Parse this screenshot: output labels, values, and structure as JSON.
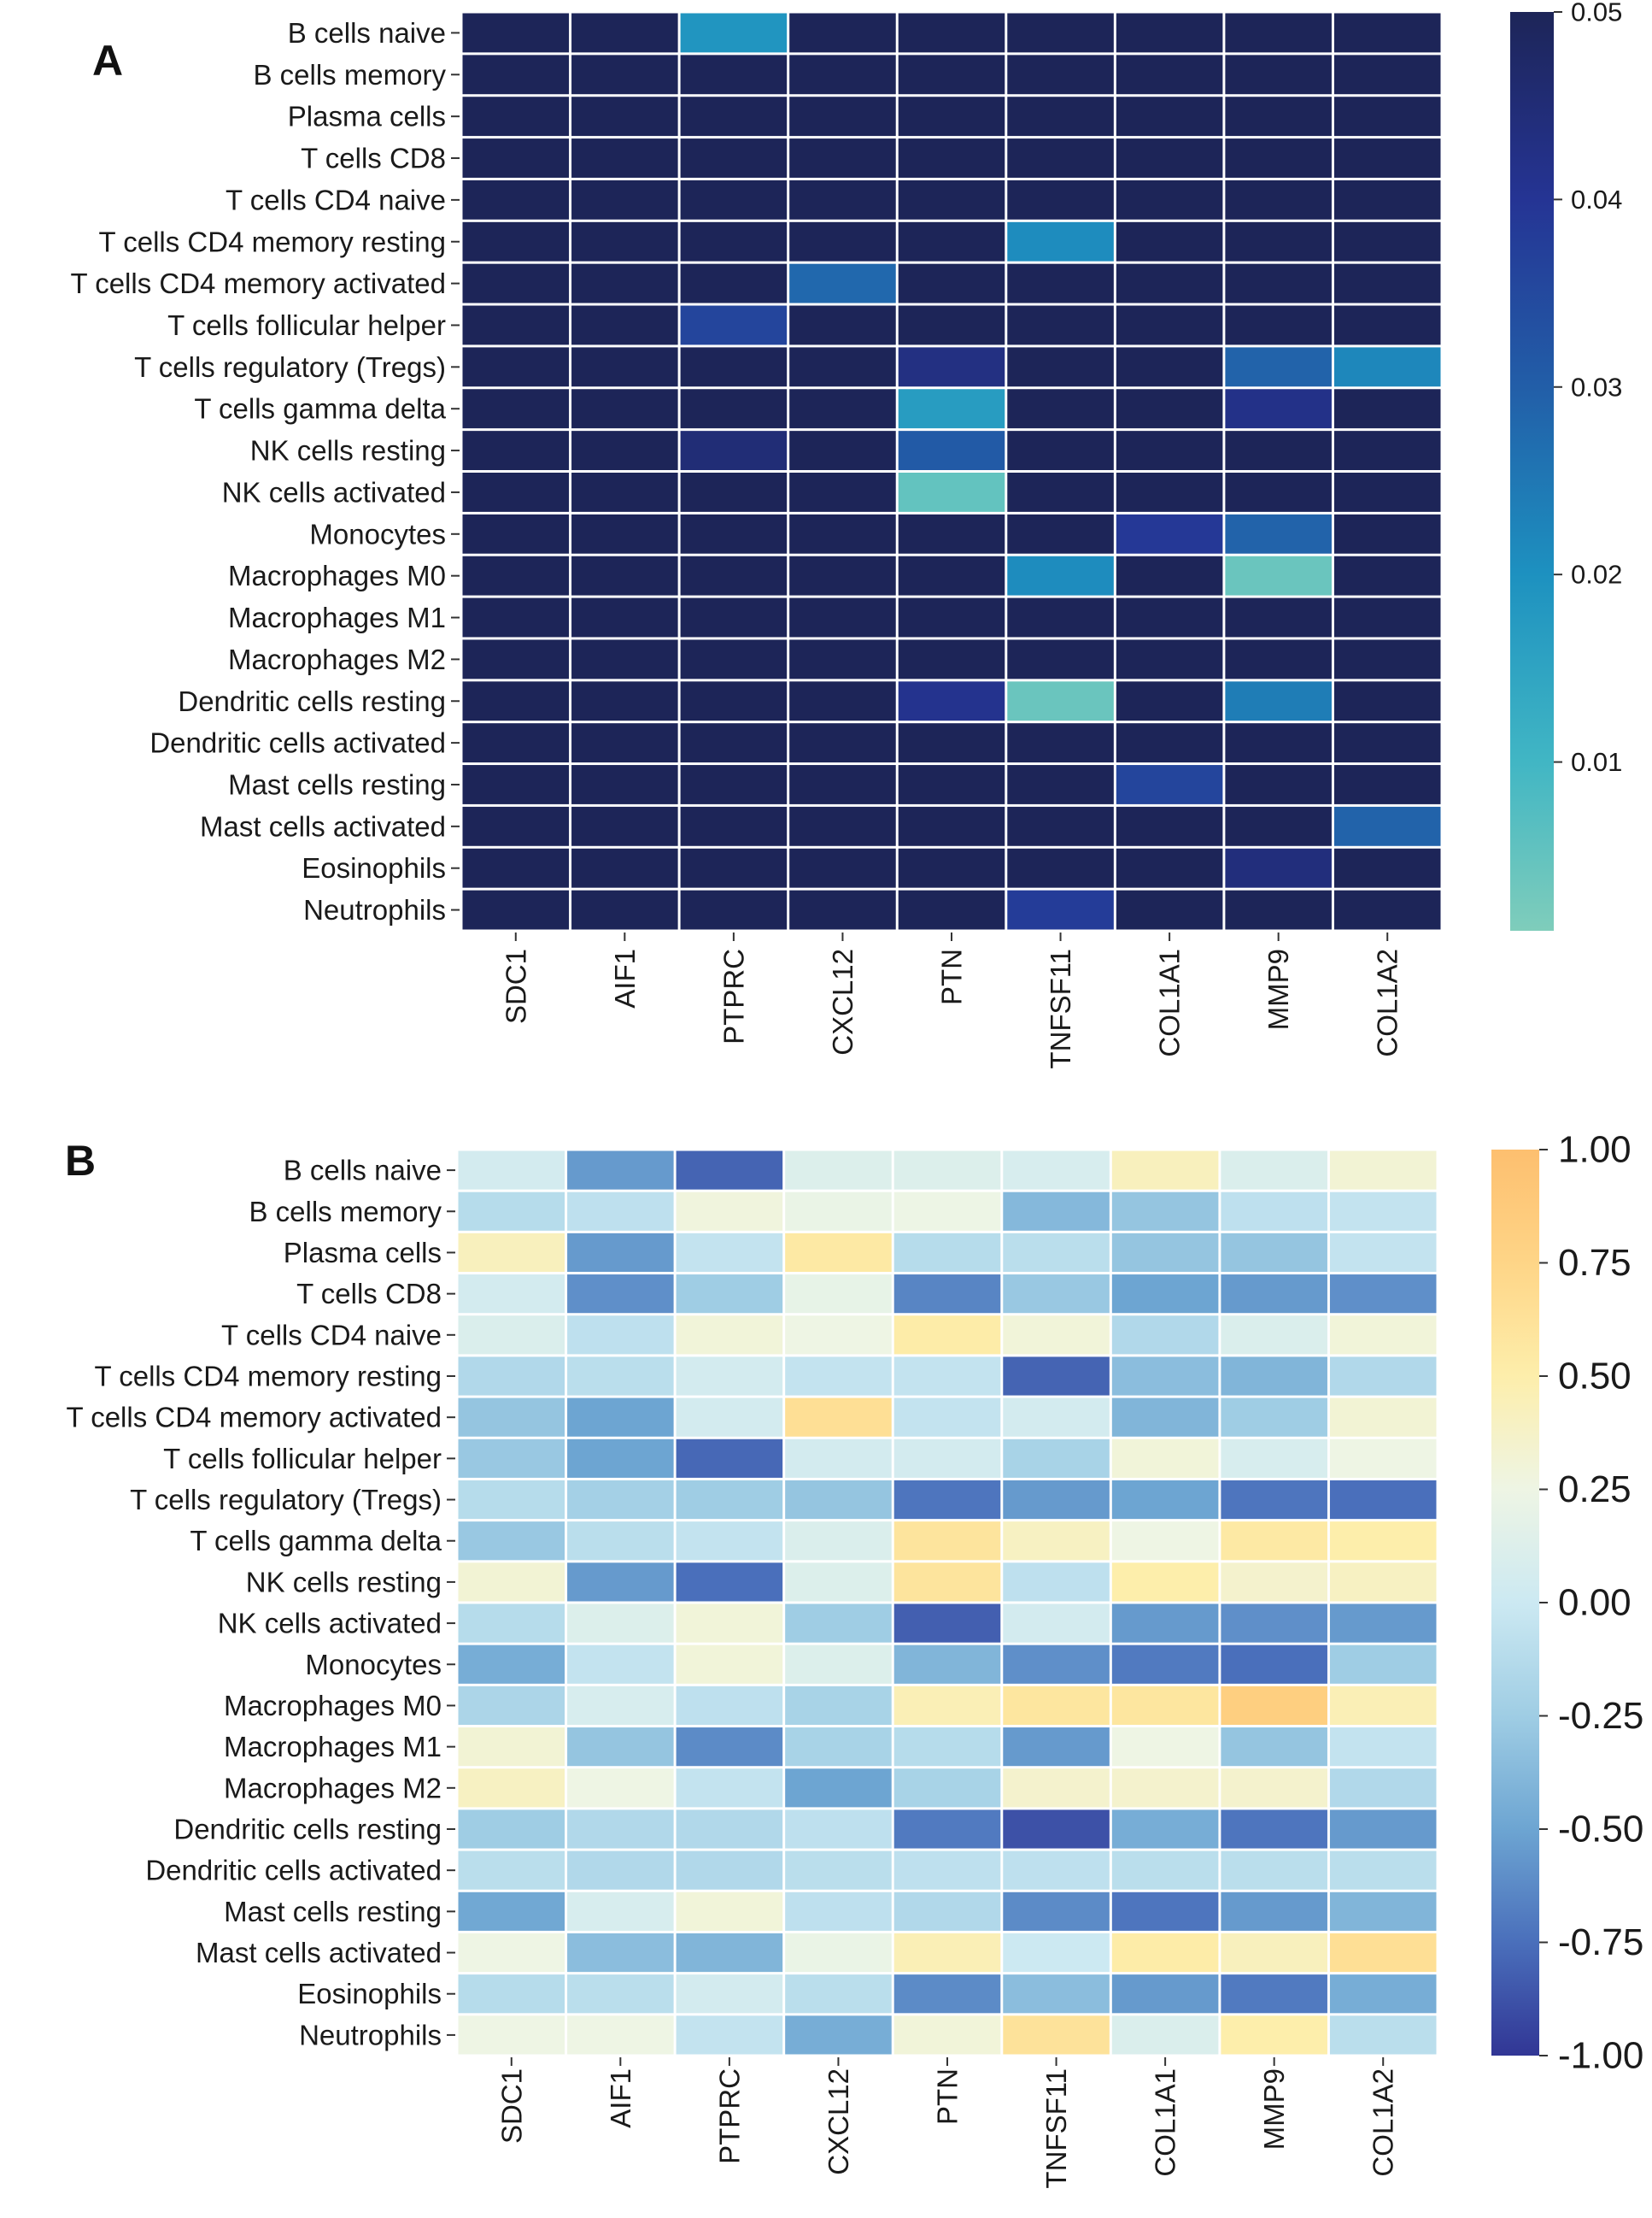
{
  "chart_data": [
    {
      "type": "heatmap",
      "panel_label": "A",
      "rows": [
        "B cells naive",
        "B cells memory",
        "Plasma cells",
        "T cells CD8",
        "T cells CD4 naive",
        "T cells CD4 memory resting",
        "T cells CD4 memory activated",
        "T cells follicular helper",
        "T cells regulatory (Tregs)",
        "T cells gamma delta",
        "NK cells resting",
        "NK cells activated",
        "Monocytes",
        "Macrophages M0",
        "Macrophages M1",
        "Macrophages M2",
        "Dendritic cells resting",
        "Dendritic cells activated",
        "Mast cells resting",
        "Mast cells activated",
        "Eosinophils",
        "Neutrophils"
      ],
      "columns": [
        "SDC1",
        "AIF1",
        "PTPRC",
        "CXCL12",
        "PTN",
        "TNFSF11",
        "COL1A1",
        "MMP9",
        "COL1A2"
      ],
      "values": [
        [
          0.05,
          0.05,
          0.019,
          0.05,
          0.05,
          0.05,
          0.05,
          0.05,
          0.05
        ],
        [
          0.05,
          0.05,
          0.05,
          0.05,
          0.05,
          0.05,
          0.05,
          0.05,
          0.05
        ],
        [
          0.05,
          0.05,
          0.05,
          0.05,
          0.05,
          0.05,
          0.05,
          0.05,
          0.05
        ],
        [
          0.05,
          0.05,
          0.05,
          0.05,
          0.05,
          0.05,
          0.05,
          0.05,
          0.05
        ],
        [
          0.05,
          0.05,
          0.05,
          0.05,
          0.05,
          0.05,
          0.05,
          0.05,
          0.05
        ],
        [
          0.05,
          0.05,
          0.05,
          0.05,
          0.05,
          0.021,
          0.05,
          0.05,
          0.05
        ],
        [
          0.05,
          0.05,
          0.05,
          0.028,
          0.05,
          0.05,
          0.05,
          0.05,
          0.05
        ],
        [
          0.05,
          0.05,
          0.036,
          0.05,
          0.05,
          0.05,
          0.05,
          0.05,
          0.05
        ],
        [
          0.05,
          0.05,
          0.05,
          0.05,
          0.043,
          0.05,
          0.05,
          0.029,
          0.022
        ],
        [
          0.05,
          0.05,
          0.05,
          0.05,
          0.017,
          0.05,
          0.05,
          0.042,
          0.05
        ],
        [
          0.05,
          0.05,
          0.045,
          0.05,
          0.031,
          0.05,
          0.05,
          0.05,
          0.05
        ],
        [
          0.05,
          0.05,
          0.05,
          0.05,
          0.005,
          0.05,
          0.05,
          0.05,
          0.05
        ],
        [
          0.05,
          0.05,
          0.05,
          0.05,
          0.05,
          0.05,
          0.039,
          0.029,
          0.05
        ],
        [
          0.05,
          0.05,
          0.05,
          0.05,
          0.05,
          0.021,
          0.05,
          0.004,
          0.05
        ],
        [
          0.05,
          0.05,
          0.05,
          0.05,
          0.05,
          0.05,
          0.05,
          0.05,
          0.05
        ],
        [
          0.05,
          0.05,
          0.05,
          0.05,
          0.05,
          0.05,
          0.05,
          0.05,
          0.05
        ],
        [
          0.05,
          0.05,
          0.05,
          0.05,
          0.041,
          0.004,
          0.05,
          0.024,
          0.05
        ],
        [
          0.05,
          0.05,
          0.05,
          0.05,
          0.05,
          0.05,
          0.05,
          0.05,
          0.05
        ],
        [
          0.05,
          0.05,
          0.05,
          0.05,
          0.05,
          0.05,
          0.036,
          0.05,
          0.05
        ],
        [
          0.05,
          0.05,
          0.05,
          0.05,
          0.05,
          0.05,
          0.05,
          0.05,
          0.029
        ],
        [
          0.05,
          0.05,
          0.05,
          0.05,
          0.05,
          0.05,
          0.05,
          0.044,
          0.05
        ],
        [
          0.05,
          0.05,
          0.05,
          0.05,
          0.05,
          0.038,
          0.05,
          0.05,
          0.05
        ]
      ],
      "colorbar": {
        "range": [
          0.001,
          0.05
        ],
        "ticks": [
          "0.01",
          "0.02",
          "0.03",
          "0.04",
          "0.05"
        ],
        "tick_values": [
          0.01,
          0.02,
          0.03,
          0.04,
          0.05
        ],
        "colormap": "YlGnBu-section",
        "stops": [
          {
            "v": 0.001,
            "c": "#7fcdbb"
          },
          {
            "v": 0.01,
            "c": "#41b6c4"
          },
          {
            "v": 0.02,
            "c": "#1d91c0"
          },
          {
            "v": 0.03,
            "c": "#225ea8"
          },
          {
            "v": 0.04,
            "c": "#253494"
          },
          {
            "v": 0.05,
            "c": "#1d2558"
          }
        ]
      }
    },
    {
      "type": "heatmap",
      "panel_label": "B",
      "rows": [
        "B cells naive",
        "B cells memory",
        "Plasma cells",
        "T cells CD8",
        "T cells CD4 naive",
        "T cells CD4 memory resting",
        "T cells CD4 memory activated",
        "T cells follicular helper",
        "T cells regulatory (Tregs)",
        "T cells gamma delta",
        "NK cells resting",
        "NK cells activated",
        "Monocytes",
        "Macrophages M0",
        "Macrophages M1",
        "Macrophages M2",
        "Dendritic cells resting",
        "Dendritic cells activated",
        "Mast cells resting",
        "Mast cells activated",
        "Eosinophils",
        "Neutrophils"
      ],
      "columns": [
        "SDC1",
        "AIF1",
        "PTPRC",
        "CXCL12",
        "PTN",
        "TNFSF11",
        "COL1A1",
        "MMP9",
        "COL1A2"
      ],
      "values": [
        [
          0.05,
          -0.55,
          -0.8,
          0.12,
          0.12,
          0.08,
          0.42,
          0.1,
          0.32
        ],
        [
          -0.12,
          -0.08,
          0.28,
          0.22,
          0.24,
          -0.38,
          -0.3,
          -0.08,
          -0.05
        ],
        [
          0.42,
          -0.55,
          -0.05,
          0.55,
          -0.12,
          -0.1,
          -0.3,
          -0.3,
          -0.05
        ],
        [
          0.05,
          -0.6,
          -0.25,
          0.2,
          -0.65,
          -0.28,
          -0.5,
          -0.55,
          -0.6
        ],
        [
          0.1,
          -0.08,
          0.3,
          0.25,
          0.52,
          0.3,
          -0.15,
          0.1,
          0.3
        ],
        [
          -0.15,
          -0.1,
          0.05,
          -0.05,
          -0.05,
          -0.8,
          -0.35,
          -0.4,
          -0.15
        ],
        [
          -0.3,
          -0.5,
          0.05,
          0.65,
          -0.05,
          0.05,
          -0.4,
          -0.25,
          0.32
        ],
        [
          -0.28,
          -0.5,
          -0.78,
          0.05,
          0.05,
          -0.2,
          0.3,
          0.08,
          0.25
        ],
        [
          -0.12,
          -0.22,
          -0.25,
          -0.3,
          -0.72,
          -0.55,
          -0.5,
          -0.72,
          -0.75
        ],
        [
          -0.28,
          -0.1,
          -0.05,
          0.1,
          0.6,
          0.4,
          0.25,
          0.55,
          0.5
        ],
        [
          0.32,
          -0.55,
          -0.75,
          0.12,
          0.6,
          -0.08,
          0.5,
          0.35,
          0.4
        ],
        [
          -0.12,
          0.12,
          0.3,
          -0.25,
          -0.82,
          0.05,
          -0.55,
          -0.6,
          -0.55
        ],
        [
          -0.45,
          -0.05,
          0.3,
          0.12,
          -0.4,
          -0.6,
          -0.7,
          -0.75,
          -0.25
        ],
        [
          -0.18,
          0.08,
          -0.08,
          -0.2,
          0.45,
          0.58,
          0.58,
          0.82,
          0.45
        ],
        [
          0.32,
          -0.3,
          -0.62,
          -0.2,
          -0.12,
          -0.55,
          0.25,
          -0.3,
          -0.05
        ],
        [
          0.4,
          0.25,
          -0.05,
          -0.5,
          -0.2,
          0.35,
          0.35,
          0.35,
          -0.15
        ],
        [
          -0.25,
          -0.15,
          -0.15,
          -0.08,
          -0.7,
          -0.88,
          -0.45,
          -0.72,
          -0.55
        ],
        [
          -0.1,
          -0.15,
          -0.15,
          -0.1,
          -0.08,
          -0.08,
          -0.1,
          -0.1,
          -0.1
        ],
        [
          -0.48,
          0.08,
          0.3,
          -0.08,
          -0.15,
          -0.62,
          -0.72,
          -0.55,
          -0.4
        ],
        [
          0.25,
          -0.35,
          -0.4,
          0.22,
          0.45,
          0.0,
          0.52,
          0.42,
          0.65
        ],
        [
          -0.12,
          -0.1,
          0.05,
          -0.1,
          -0.62,
          -0.35,
          -0.55,
          -0.7,
          -0.45
        ],
        [
          0.25,
          0.25,
          -0.05,
          -0.45,
          0.3,
          0.62,
          0.1,
          0.5,
          -0.1
        ]
      ],
      "colorbar": {
        "range": [
          -1.0,
          1.0
        ],
        "ticks": [
          "-1.00",
          "-0.75",
          "-0.50",
          "-0.25",
          "0.00",
          "0.25",
          "0.50",
          "0.75",
          "1.00"
        ],
        "tick_values": [
          -1.0,
          -0.75,
          -0.5,
          -0.25,
          0.0,
          0.25,
          0.5,
          0.75,
          1.0
        ],
        "colormap": "RdYlBu_r-section",
        "stops": [
          {
            "v": -1.0,
            "c": "#313695"
          },
          {
            "v": -0.75,
            "c": "#4a6fbb"
          },
          {
            "v": -0.5,
            "c": "#6da5d2"
          },
          {
            "v": -0.25,
            "c": "#9fcde4"
          },
          {
            "v": 0.0,
            "c": "#cce9f2"
          },
          {
            "v": 0.25,
            "c": "#eef5e4"
          },
          {
            "v": 0.5,
            "c": "#fdeeab"
          },
          {
            "v": 0.75,
            "c": "#fed587"
          },
          {
            "v": 1.0,
            "c": "#fdbf6f"
          }
        ]
      }
    }
  ]
}
